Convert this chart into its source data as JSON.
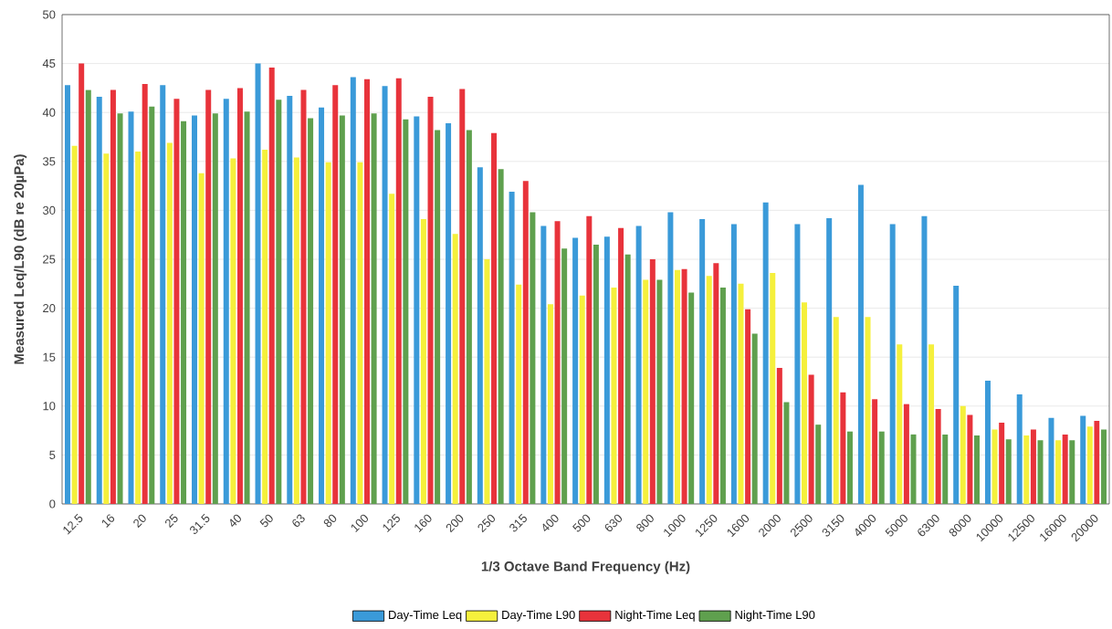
{
  "chart_data": {
    "type": "bar",
    "xlabel": "1/3 Octave Band Frequency (Hz)",
    "ylabel": "Measured Leq/L90 (dB re 20µPa)",
    "categories": [
      "12.5",
      "16",
      "20",
      "25",
      "31.5",
      "40",
      "50",
      "63",
      "80",
      "100",
      "125",
      "160",
      "200",
      "250",
      "315",
      "400",
      "500",
      "630",
      "800",
      "1000",
      "1250",
      "1600",
      "2000",
      "2500",
      "3150",
      "4000",
      "5000",
      "6300",
      "8000",
      "10000",
      "12500",
      "16000",
      "20000"
    ],
    "series": [
      {
        "name": "Day-Time Leq",
        "color": "#3a9ad9",
        "values": [
          42.8,
          41.6,
          40.1,
          42.8,
          39.7,
          41.4,
          45.0,
          41.7,
          40.5,
          43.6,
          42.7,
          39.6,
          38.9,
          34.4,
          31.9,
          28.4,
          27.2,
          27.3,
          28.4,
          29.8,
          29.1,
          28.6,
          30.8,
          28.6,
          29.2,
          32.6,
          28.6,
          29.4,
          22.3,
          12.6,
          11.2,
          8.8,
          9.0
        ]
      },
      {
        "name": "Day-Time L90",
        "color": "#f5f03c",
        "values": [
          36.6,
          35.8,
          36.0,
          36.9,
          33.8,
          35.3,
          36.2,
          35.4,
          34.9,
          34.9,
          31.7,
          29.1,
          27.6,
          25.0,
          22.4,
          20.4,
          21.3,
          22.1,
          22.9,
          23.9,
          23.3,
          22.5,
          23.6,
          20.6,
          19.1,
          19.1,
          16.3,
          16.3,
          10.0,
          7.6,
          7.0,
          6.5,
          7.9
        ]
      },
      {
        "name": "Night-Time Leq",
        "color": "#e8333b",
        "values": [
          45.0,
          42.3,
          42.9,
          41.4,
          42.3,
          42.5,
          44.6,
          42.3,
          42.8,
          43.4,
          43.5,
          41.6,
          42.4,
          37.9,
          33.0,
          28.9,
          29.4,
          28.2,
          25.0,
          24.0,
          24.6,
          19.9,
          13.9,
          13.2,
          11.4,
          10.7,
          10.2,
          9.7,
          9.1,
          8.3,
          7.6,
          7.1,
          8.5
        ]
      },
      {
        "name": "Night-Time L90",
        "color": "#5fa04e",
        "values": [
          42.3,
          39.9,
          40.6,
          39.1,
          39.9,
          40.1,
          41.3,
          39.4,
          39.7,
          39.9,
          39.3,
          38.2,
          38.2,
          34.2,
          29.8,
          26.1,
          26.5,
          25.5,
          22.9,
          21.6,
          22.1,
          17.4,
          10.4,
          8.1,
          7.4,
          7.4,
          7.1,
          7.1,
          7.0,
          6.6,
          6.5,
          6.5,
          7.6
        ]
      }
    ],
    "ylim": [
      0,
      50
    ],
    "yticks": [
      0,
      5,
      10,
      15,
      20,
      25,
      30,
      35,
      40,
      45,
      50
    ],
    "grid": "y",
    "legend": "bottom"
  }
}
